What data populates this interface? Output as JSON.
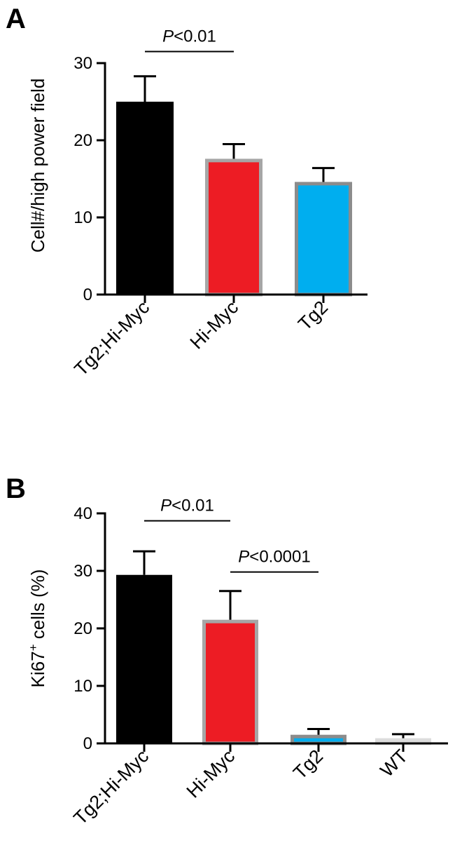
{
  "chart_data": [
    {
      "type": "bar",
      "panel_label": "A",
      "ylabel": "Cell#/high power field",
      "ylim": [
        0,
        30
      ],
      "yticks": [
        0,
        10,
        20,
        30
      ],
      "categories": [
        "Tg2;Hi-Myc",
        "Hi-Myc",
        "Tg2"
      ],
      "values": [
        25,
        17.6,
        14.6
      ],
      "errors": [
        3.3,
        1.9,
        1.8
      ],
      "bar_colors": [
        "#000000",
        "#ed1c24",
        "#00aeef"
      ],
      "bar_edge_colors": [
        "#000000",
        "#a6a6a6",
        "#8c8c8c"
      ],
      "significance": [
        {
          "from": "Tg2;Hi-Myc",
          "to": "Hi-Myc",
          "label_italic": "P",
          "label_rest": "<0.01",
          "level": 31.5
        }
      ],
      "grid": false,
      "legend": "none"
    },
    {
      "type": "bar",
      "panel_label": "B",
      "ylabel": "Ki67",
      "ylabel_superscript": "+",
      "ylabel_rest": " cells (%)",
      "ylim": [
        0,
        40
      ],
      "yticks": [
        0,
        10,
        20,
        30,
        40
      ],
      "categories": [
        "Tg2;Hi-Myc",
        "Hi-Myc",
        "Tg2",
        "WT"
      ],
      "values": [
        29.3,
        21.5,
        1.5,
        0.9
      ],
      "errors": [
        4.1,
        5.0,
        1.0,
        0.7
      ],
      "bar_colors": [
        "#000000",
        "#ed1c24",
        "#00aeef",
        "#e6e6e6"
      ],
      "bar_edge_colors": [
        "#000000",
        "#a6a6a6",
        "#8c8c8c",
        "#dcdcdc"
      ],
      "significance": [
        {
          "from": "Tg2;Hi-Myc",
          "to": "Hi-Myc",
          "label_italic": "P",
          "label_rest": "<0.01",
          "level": 38.7
        },
        {
          "from": "Hi-Myc",
          "to": "Tg2",
          "label_italic": "P",
          "label_rest": "<0.0001",
          "level": 29.8
        }
      ],
      "grid": false,
      "legend": "none"
    }
  ]
}
